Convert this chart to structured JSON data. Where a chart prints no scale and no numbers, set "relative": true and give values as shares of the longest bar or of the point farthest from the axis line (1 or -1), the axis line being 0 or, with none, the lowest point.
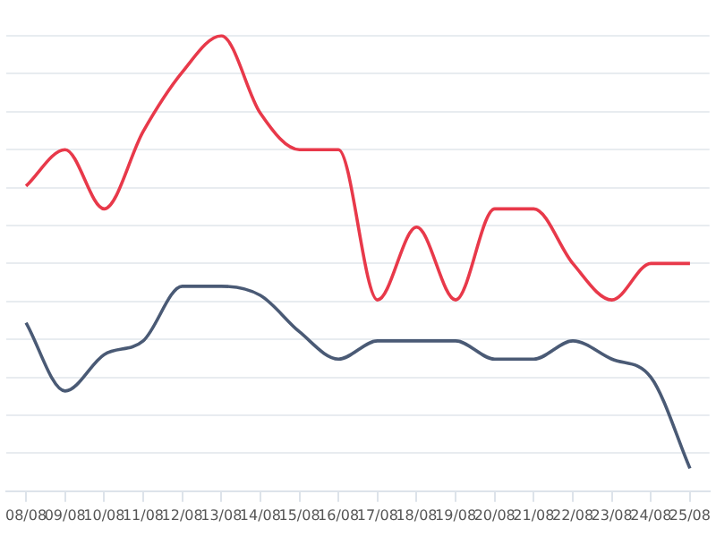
{
  "chart_data": {
    "type": "line",
    "relative": true,
    "grid": true,
    "categories": [
      "08/08",
      "09/08",
      "10/08",
      "11/08",
      "12/08",
      "13/08",
      "14/08",
      "15/08",
      "16/08",
      "17/08",
      "18/08",
      "19/08",
      "20/08",
      "21/08",
      "22/08",
      "23/08",
      "24/08",
      "25/08"
    ],
    "series": [
      {
        "color": "#e8394a",
        "values": [
          0.67,
          0.75,
          0.62,
          0.79,
          0.92,
          1,
          0.83,
          0.75,
          0.75,
          0.42,
          0.58,
          0.42,
          0.62,
          0.62,
          0.5,
          0.42,
          0.5,
          0.5
        ]
      },
      {
        "color": "#4a5a75",
        "values": [
          0.37,
          0.22,
          0.3,
          0.33,
          0.45,
          0.45,
          0.43,
          0.35,
          0.29,
          0.33,
          0.33,
          0.33,
          0.29,
          0.29,
          0.33,
          0.29,
          0.25,
          0.05
        ]
      }
    ]
  }
}
